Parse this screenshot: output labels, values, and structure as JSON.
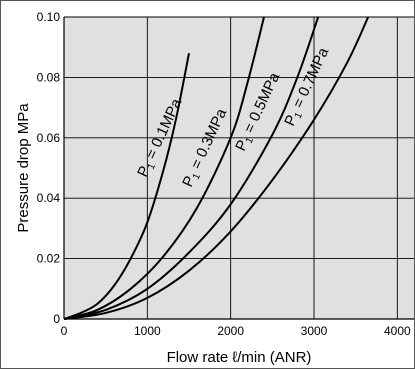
{
  "chart_data": {
    "type": "line",
    "xlabel": "Flow rate ℓ/min (ANR)",
    "ylabel": "Pressure drop  MPa",
    "xlim": [
      0,
      4200
    ],
    "ylim": [
      0,
      0.1
    ],
    "x_ticks": [
      "0",
      "1000",
      "2000",
      "3000",
      "4000"
    ],
    "y_ticks": [
      "0",
      "0.02",
      "0.04",
      "0.06",
      "0.08",
      "0.10"
    ],
    "grid": true,
    "plot_background": "#e0e0e0",
    "line_color": "#000000",
    "series": [
      {
        "name": "P1 = 0.1MPa",
        "label_main": "P",
        "label_sub": "1",
        "label_rest": " = 0.1MPa",
        "x": [
          0,
          200,
          400,
          600,
          800,
          1000,
          1200,
          1350,
          1500
        ],
        "y": [
          0,
          0.002,
          0.005,
          0.011,
          0.02,
          0.032,
          0.05,
          0.067,
          0.088
        ]
      },
      {
        "name": "P1 = 0.3MPa",
        "label_main": "P",
        "label_sub": "1",
        "label_rest": " = 0.3MPa",
        "x": [
          0,
          400,
          800,
          1200,
          1600,
          2000,
          2200,
          2400
        ],
        "y": [
          0,
          0.003,
          0.01,
          0.021,
          0.037,
          0.06,
          0.078,
          0.1
        ]
      },
      {
        "name": "P1 = 0.5MPa",
        "label_main": "P",
        "label_sub": "1",
        "label_rest": " = 0.5MPa",
        "x": [
          0,
          500,
          1000,
          1500,
          2000,
          2500,
          2800,
          3050
        ],
        "y": [
          0,
          0.003,
          0.01,
          0.022,
          0.038,
          0.061,
          0.08,
          0.1
        ]
      },
      {
        "name": "P1 = 0.7MPa",
        "label_main": "P",
        "label_sub": "1",
        "label_rest": " = 0.7MPa",
        "x": [
          0,
          500,
          1000,
          1500,
          2000,
          2500,
          3000,
          3400,
          3650
        ],
        "y": [
          0,
          0.002,
          0.007,
          0.016,
          0.029,
          0.046,
          0.066,
          0.085,
          0.1
        ]
      }
    ]
  }
}
